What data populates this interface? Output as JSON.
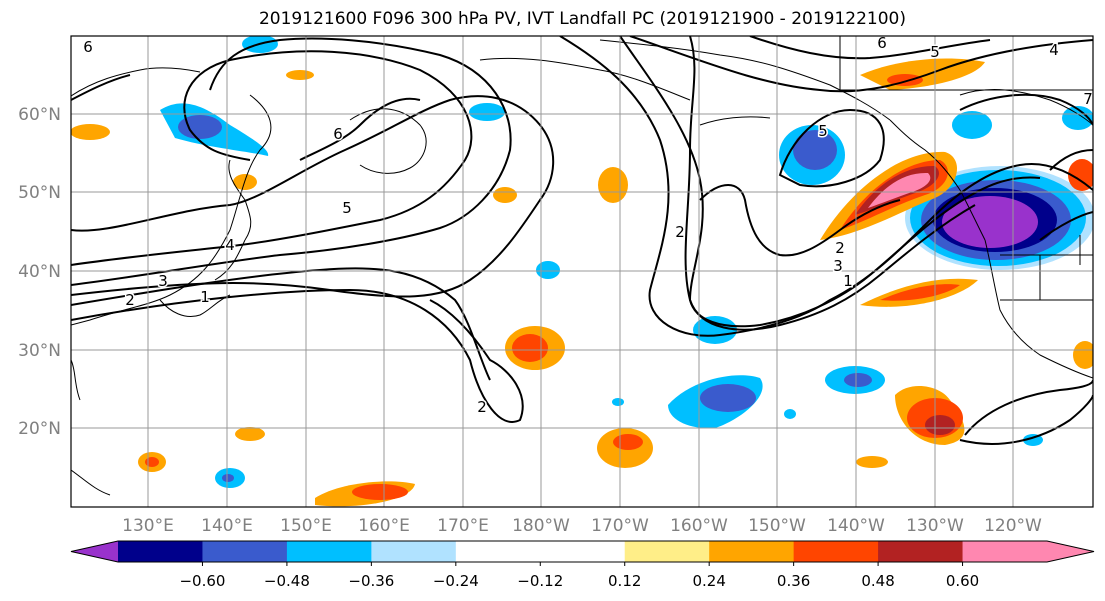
{
  "title": "2019121600 F096 300 hPa PV, IVT Landfall PC (2019121900 - 2019122100)",
  "lon_ticks": [
    "130°E",
    "140°E",
    "150°E",
    "160°E",
    "170°E",
    "180°W",
    "170°W",
    "160°W",
    "150°W",
    "140°W",
    "130°W",
    "120°W"
  ],
  "lat_ticks": [
    "60°N",
    "50°N",
    "40°N",
    "30°N",
    "20°N"
  ],
  "contour_labels": [
    "6",
    "5",
    "4",
    "3",
    "2",
    "1",
    "2",
    "2",
    "5",
    "6",
    "5",
    "4",
    "3",
    "2",
    "1",
    "7",
    "6"
  ],
  "colorbar": {
    "colors": [
      "#9932CC",
      "#00008B",
      "#3A5BCD",
      "#00BFFF",
      "#B0E2FF",
      "#FFFFFF",
      "#FFFFFF",
      "#FFEE88",
      "#FFA500",
      "#FF4500",
      "#B22222",
      "#FF87B0"
    ],
    "labels": [
      "−0.60",
      "−0.48",
      "−0.36",
      "−0.24",
      "−0.12",
      "0.12",
      "0.24",
      "0.36",
      "0.48",
      "0.60"
    ]
  }
}
